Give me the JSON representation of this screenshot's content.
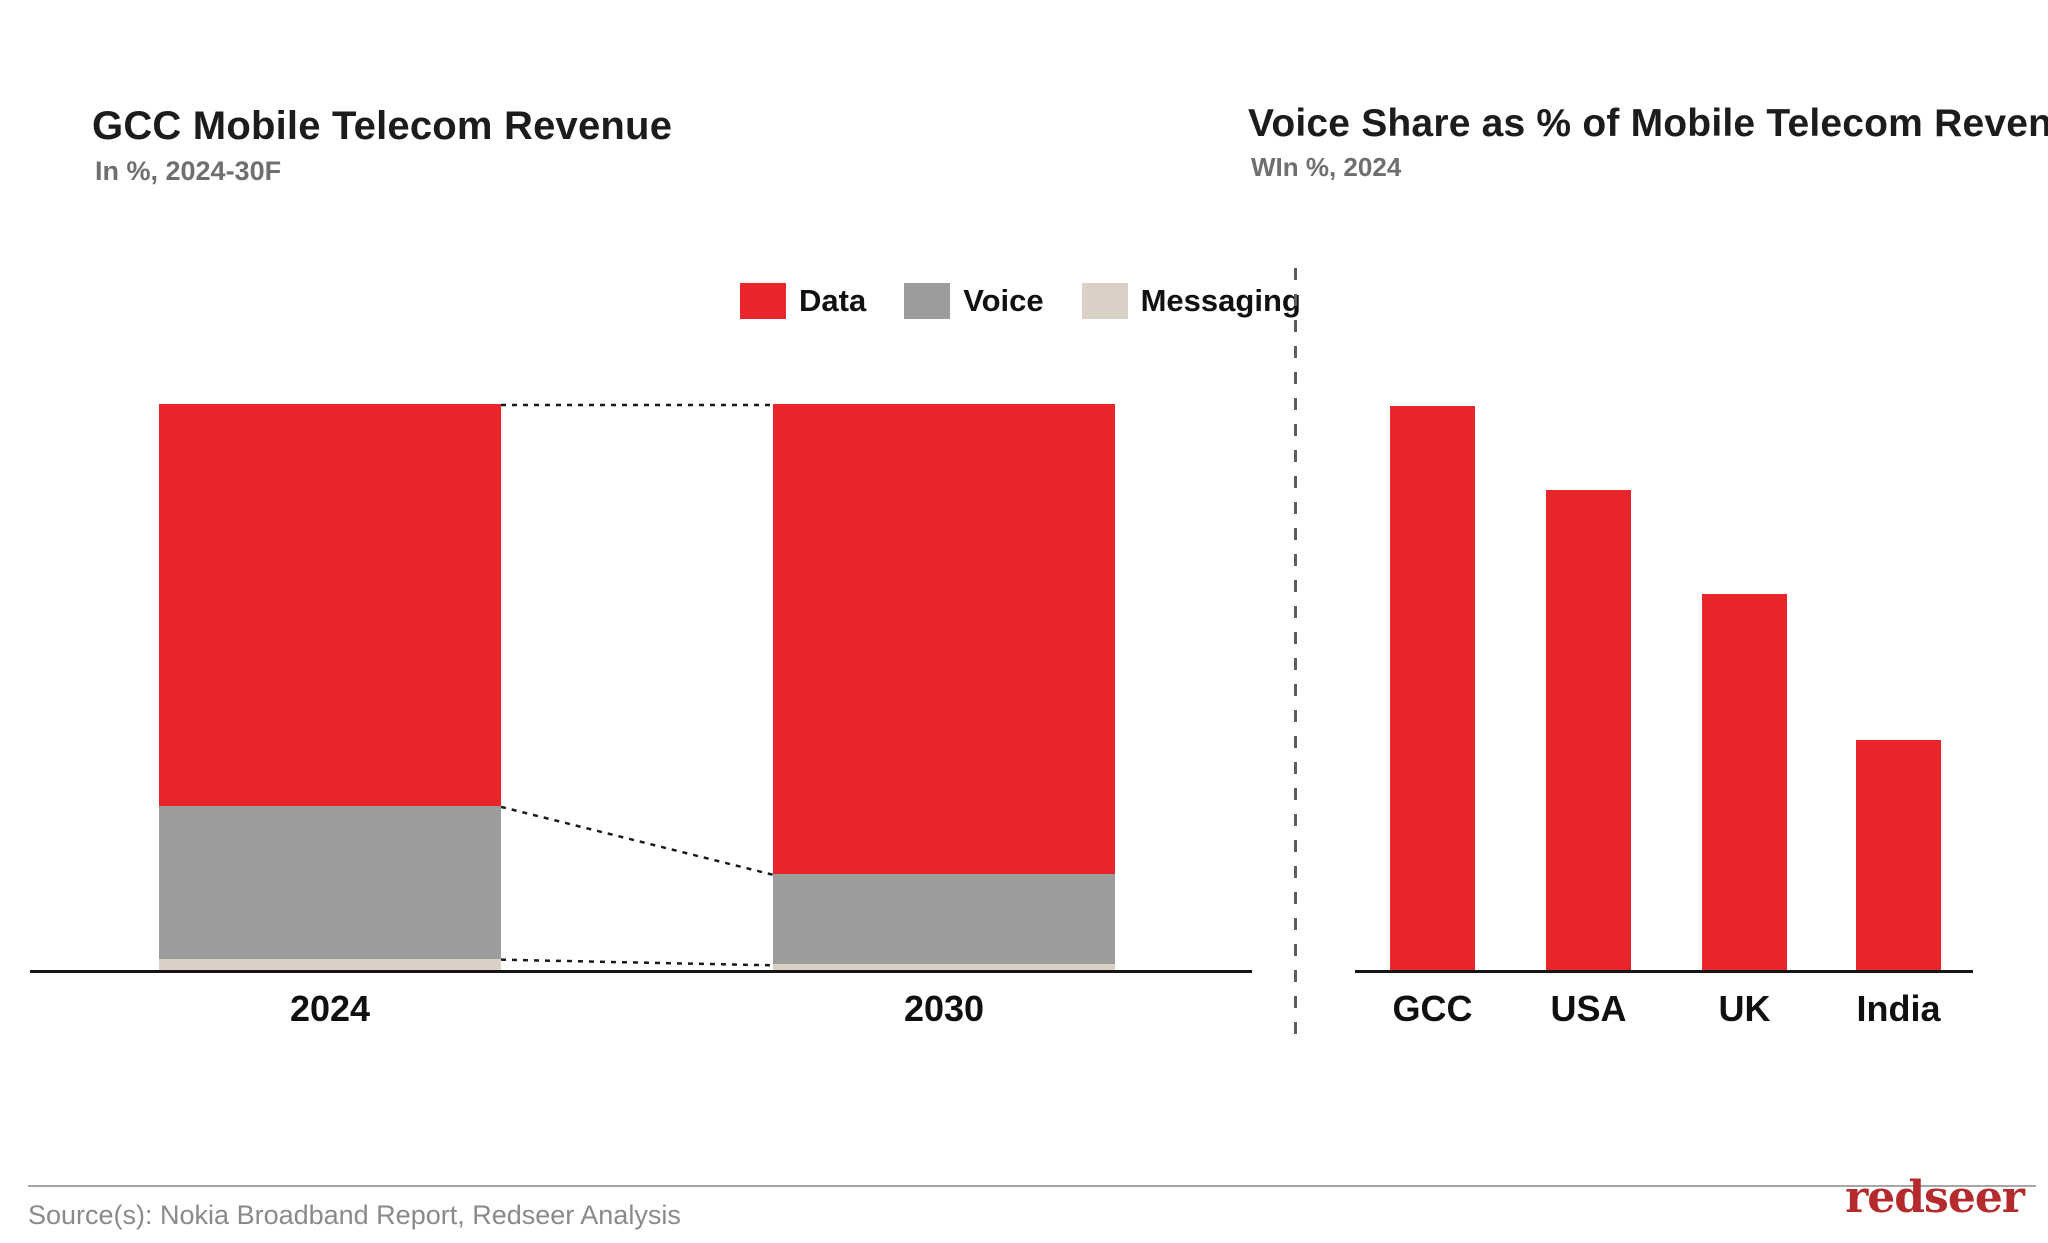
{
  "page": {
    "background": "#ffffff"
  },
  "footer": {
    "source_text": "Source(s): Nokia Broadband Report, Redseer Analysis",
    "logo_text": "redseer",
    "logo_color": "#b52a2c",
    "rule_color": "#a6a6a6"
  },
  "divider": {
    "style": "vertical-dashed",
    "color": "#5d5d5d"
  },
  "colors": {
    "data_red": "#e8252b",
    "voice_gray": "#9c9c9c",
    "messaging_beige": "#dad0c5",
    "axis_black": "#161616",
    "connector_black": "#1a1a1a"
  },
  "chart_data": [
    {
      "type": "bar",
      "stacked": true,
      "unit": "% of revenue (100% stacked)",
      "title": "GCC Mobile Telecom Revenue",
      "subtitle": "In %, 2024-30F",
      "categories": [
        "2024",
        "2030"
      ],
      "series": [
        {
          "name": "Data",
          "color": "#e8252b",
          "values": [
            71,
            83
          ]
        },
        {
          "name": "Voice",
          "color": "#9c9c9c",
          "values": [
            27,
            16
          ]
        },
        {
          "name": "Messaging",
          "color": "#dad0c5",
          "values": [
            2,
            1
          ]
        }
      ],
      "legend_position": "top-right",
      "grid": false,
      "data_labels_shown": false,
      "connectors": "dashed lines join segment boundaries between the two stacks"
    },
    {
      "type": "bar",
      "title": "Voice Share as % of Mobile Telecom Revenue",
      "subtitle": "WIn %, 2024",
      "categories": [
        "GCC",
        "USA",
        "UK",
        "India"
      ],
      "values": [
        27,
        23,
        18,
        11
      ],
      "bar_color": "#e8252b",
      "grid": false,
      "data_labels_shown": false,
      "ylim": [
        0,
        27
      ]
    }
  ]
}
